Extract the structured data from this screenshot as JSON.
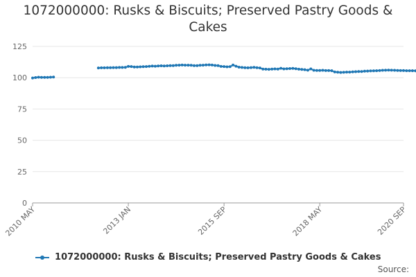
{
  "chart_data": {
    "type": "line",
    "title_lines": [
      "1072000000: Rusks & Biscuits; Preserved Pastry Goods &",
      "Cakes"
    ],
    "xlabel": "",
    "ylabel": "",
    "ylim": [
      0,
      125
    ],
    "y_ticks": [
      0,
      25,
      50,
      75,
      100,
      125
    ],
    "x_range": [
      "2010-05",
      "2020-09"
    ],
    "x_tick_labels": [
      {
        "label": "2010 MAY",
        "date": "2010-05"
      },
      {
        "label": "2013 JAN",
        "date": "2013-01"
      },
      {
        "label": "2015 SEP",
        "date": "2015-09"
      },
      {
        "label": "2018 MAY",
        "date": "2018-05"
      },
      {
        "label": "2020 SEP",
        "date": "2020-09"
      }
    ],
    "grid": true,
    "legend_position": "bottom-center",
    "series": [
      {
        "name": "1072000000: Rusks & Biscuits; Preserved Pastry Goods & Cakes",
        "color": "#1f77b4",
        "segments": [
          {
            "start": "2010-05",
            "values": [
              99.8,
              100.1,
              100.4,
              100.3,
              100.2,
              100.3,
              100.4,
              100.5
            ]
          },
          {
            "start": "2012-03",
            "values": [
              107.8,
              107.9,
              107.9,
              108.0,
              108.0,
              108.1,
              108.1,
              108.2,
              108.2,
              108.3,
              109.0,
              108.9,
              108.5,
              108.6,
              108.7,
              108.8,
              108.9,
              109.1,
              109.3,
              109.2,
              109.4,
              109.5,
              109.4,
              109.5,
              109.6,
              109.7,
              109.9,
              110.0,
              110.1,
              110.0,
              110.0,
              109.9,
              109.6,
              109.7,
              109.9,
              110.0,
              110.2,
              110.3,
              110.1,
              109.8,
              109.6,
              109.0,
              108.9,
              108.7,
              108.8,
              110.1,
              109.2,
              108.4,
              108.2,
              108.0,
              107.9,
              108.1,
              108.3,
              108.0,
              107.8,
              106.9,
              106.8,
              106.7,
              106.9,
              107.0,
              106.9,
              107.5,
              107.0,
              107.2,
              107.3,
              107.4,
              107.2,
              106.8,
              106.6,
              106.4,
              106.0,
              107.0,
              105.9,
              105.8,
              105.8,
              105.9,
              105.7,
              105.7,
              105.6,
              104.6,
              104.4,
              104.2,
              104.3,
              104.5,
              104.5,
              104.7,
              104.8,
              104.9,
              105.0,
              105.2,
              105.3,
              105.4,
              105.5,
              105.6,
              105.7,
              105.9,
              106.0,
              106.1,
              106.0,
              105.9,
              105.8,
              105.7,
              105.7,
              105.6,
              105.6,
              105.6,
              105.5
            ]
          }
        ]
      }
    ]
  },
  "legend": {
    "label": "1072000000: Rusks & Biscuits; Preserved Pastry Goods & Cakes",
    "color": "#1f77b4"
  },
  "source_label": "Source:"
}
